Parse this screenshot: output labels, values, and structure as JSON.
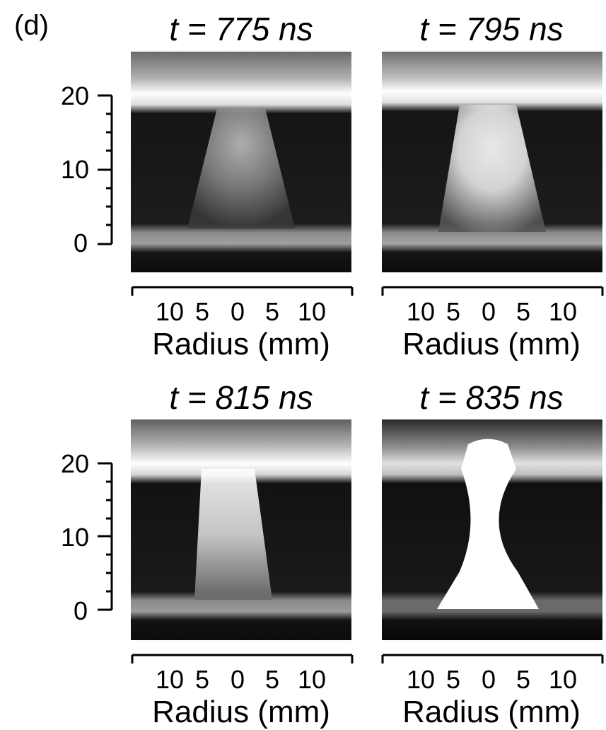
{
  "panel_label": "(d)",
  "frames": [
    {
      "title": "t = 775 ns",
      "variant": "775"
    },
    {
      "title": "t = 795 ns",
      "variant": "795"
    },
    {
      "title": "t = 815 ns",
      "variant": "815"
    },
    {
      "title": "t = 835 ns",
      "variant": "835"
    }
  ],
  "y_axis": {
    "ticks": [
      "20",
      "10",
      "0"
    ]
  },
  "x_axis": {
    "ticks": [
      "10",
      "5",
      "0",
      "5",
      "10"
    ],
    "label": "Radius (mm)"
  }
}
